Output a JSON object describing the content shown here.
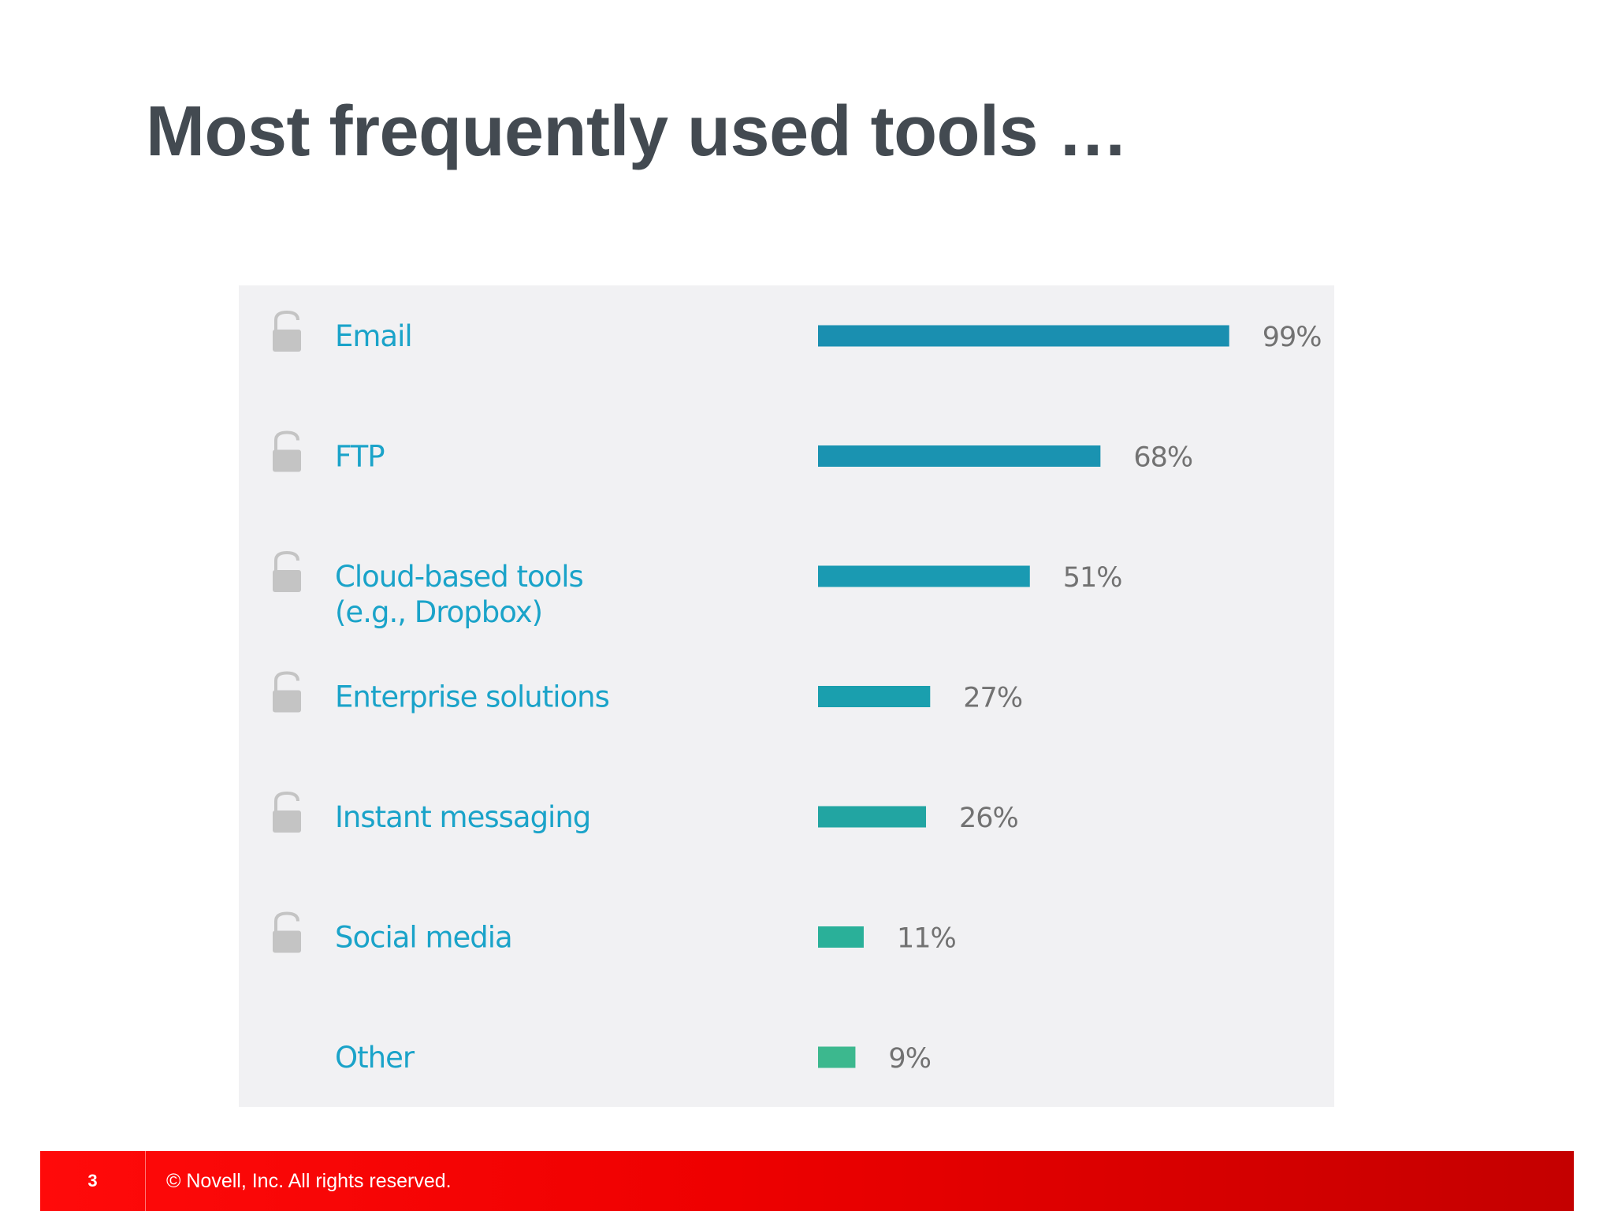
{
  "slide": {
    "title": "Most frequently used tools …",
    "page_number": "3",
    "copyright": "© Novell, Inc.  All rights reserved."
  },
  "chart_data": {
    "type": "bar",
    "orientation": "horizontal",
    "categories": [
      [
        "Email"
      ],
      [
        "FTP"
      ],
      [
        "Cloud-based  tools",
        "(e.g., Dropbox)"
      ],
      [
        "Enterprise solutions"
      ],
      [
        "Instant messaging"
      ],
      [
        "Social media"
      ],
      [
        "Other"
      ]
    ],
    "values": [
      99,
      68,
      51,
      27,
      26,
      11,
      9
    ],
    "value_labels": [
      "99%",
      "68%",
      "51%",
      "27%",
      "26%",
      "11%",
      "9%"
    ],
    "lock_icon": [
      true,
      true,
      true,
      true,
      true,
      true,
      false
    ],
    "bar_colors": [
      "#1a8fb0",
      "#1a93b1",
      "#1a9ab2",
      "#1a9fae",
      "#22a5a2",
      "#2ab099",
      "#3cb88e"
    ],
    "label_color": "#1aa3c9",
    "value_label_color": "#727272",
    "icon_color": "#c4c4c4",
    "background": "#f1f1f3",
    "xlim": [
      0,
      100
    ],
    "grid": false,
    "legend": "none"
  }
}
